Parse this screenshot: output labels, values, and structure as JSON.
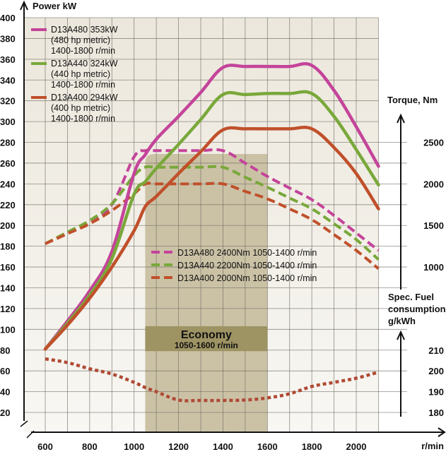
{
  "chart_data": {
    "type": "line",
    "title": "",
    "xlabel": "r/min",
    "x_ticks": [
      600,
      800,
      1000,
      1200,
      1400,
      1600,
      1800,
      2000
    ],
    "xlim": [
      600,
      2100
    ],
    "grid": true,
    "axes": {
      "power": {
        "label": "Power kW",
        "side": "left",
        "range": [
          20,
          400
        ],
        "ticks": [
          400,
          380,
          360,
          340,
          320,
          300,
          280,
          260,
          240,
          220,
          200,
          180,
          160,
          140,
          120,
          100,
          80,
          60,
          40,
          20
        ]
      },
      "torque": {
        "label": "Torque, Nm",
        "side": "right",
        "ticks": [
          2500,
          2000,
          1500,
          1000
        ]
      },
      "fuel": {
        "label_lines": [
          "Spec. Fuel",
          "consumption",
          "g/kWh"
        ],
        "side": "right",
        "ticks": [
          210,
          200,
          190,
          180
        ]
      }
    },
    "x": [
      600,
      700,
      800,
      900,
      1000,
      1050,
      1100,
      1200,
      1300,
      1400,
      1500,
      1600,
      1700,
      1800,
      1900,
      2000,
      2100
    ],
    "series": [
      {
        "name": "D13A480 353kW",
        "axis": "power",
        "style": "solid",
        "color": "#c4449a",
        "values": [
          81,
          108,
          137,
          175,
          250,
          268,
          283,
          305,
          328,
          352,
          353,
          353,
          353,
          354,
          330,
          295,
          257
        ]
      },
      {
        "name": "D13A440 324kW",
        "axis": "power",
        "style": "solid",
        "color": "#79a83a",
        "values": [
          81,
          106,
          133,
          168,
          230,
          242,
          255,
          278,
          302,
          326,
          326,
          327,
          327,
          327,
          305,
          273,
          239
        ]
      },
      {
        "name": "D13A400 294kW",
        "axis": "power",
        "style": "solid",
        "color": "#c0502b",
        "values": [
          81,
          104,
          130,
          160,
          195,
          218,
          228,
          250,
          271,
          292,
          293,
          293,
          293,
          293,
          275,
          250,
          216
        ]
      },
      {
        "name": "D13A480 2400Nm",
        "axis": "torque",
        "style": "dashed",
        "color": "#c4449a",
        "values": [
          1280,
          1410,
          1550,
          1750,
          2325,
          2400,
          2400,
          2400,
          2400,
          2400,
          2250,
          2090,
          1950,
          1810,
          1620,
          1410,
          1200
        ]
      },
      {
        "name": "D13A440 2200Nm",
        "axis": "torque",
        "style": "dashed",
        "color": "#79a83a",
        "values": [
          1280,
          1420,
          1560,
          1760,
          2100,
          2200,
          2200,
          2200,
          2200,
          2200,
          2080,
          1960,
          1830,
          1700,
          1520,
          1330,
          1090
        ]
      },
      {
        "name": "D13A400 2000Nm",
        "axis": "torque",
        "style": "dashed",
        "color": "#c0502b",
        "values": [
          1280,
          1400,
          1520,
          1680,
          1880,
          2000,
          2000,
          2000,
          2000,
          2000,
          1910,
          1820,
          1700,
          1570,
          1390,
          1200,
          980
        ]
      },
      {
        "name": "Spec. fuel consumption",
        "axis": "fuel",
        "style": "dotted",
        "color": "#b04a35",
        "values": [
          205.8,
          204,
          201,
          198.5,
          194.5,
          192,
          190,
          186,
          185.8,
          185.8,
          186,
          187,
          189,
          192.5,
          194.5,
          196.5,
          199.4
        ]
      }
    ],
    "legend_power": {
      "placement": "top-left",
      "entries": [
        {
          "color": "#c4449a",
          "lines": [
            "D13A480 353kW",
            "(480 hp metric)",
            "1400-1800 r/min"
          ]
        },
        {
          "color": "#79a83a",
          "lines": [
            "D13A440 324kW",
            "(440 hp metric)",
            "1400-1800 r/min"
          ]
        },
        {
          "color": "#c0502b",
          "lines": [
            "D13A400 294kW",
            "(400 hp metric)",
            "1400-1800 r/min"
          ]
        }
      ]
    },
    "legend_torque": {
      "placement": "center",
      "entries": [
        {
          "color": "#c4449a",
          "text": "D13A480 2400Nm 1050-1400 r/min"
        },
        {
          "color": "#79a83a",
          "text": "D13A440 2200Nm 1050-1400 r/min"
        },
        {
          "color": "#c0502b",
          "text": "D13A400 2000Nm 1050-1400 r/min"
        }
      ]
    },
    "economy_band": {
      "range_rpm": [
        1050,
        1600
      ],
      "title": "Economy",
      "subtitle": "1050-1600 r/min",
      "band_color": "#cbc2a6",
      "label_color": "#9e9363"
    },
    "plot_background": "#eee9df"
  }
}
